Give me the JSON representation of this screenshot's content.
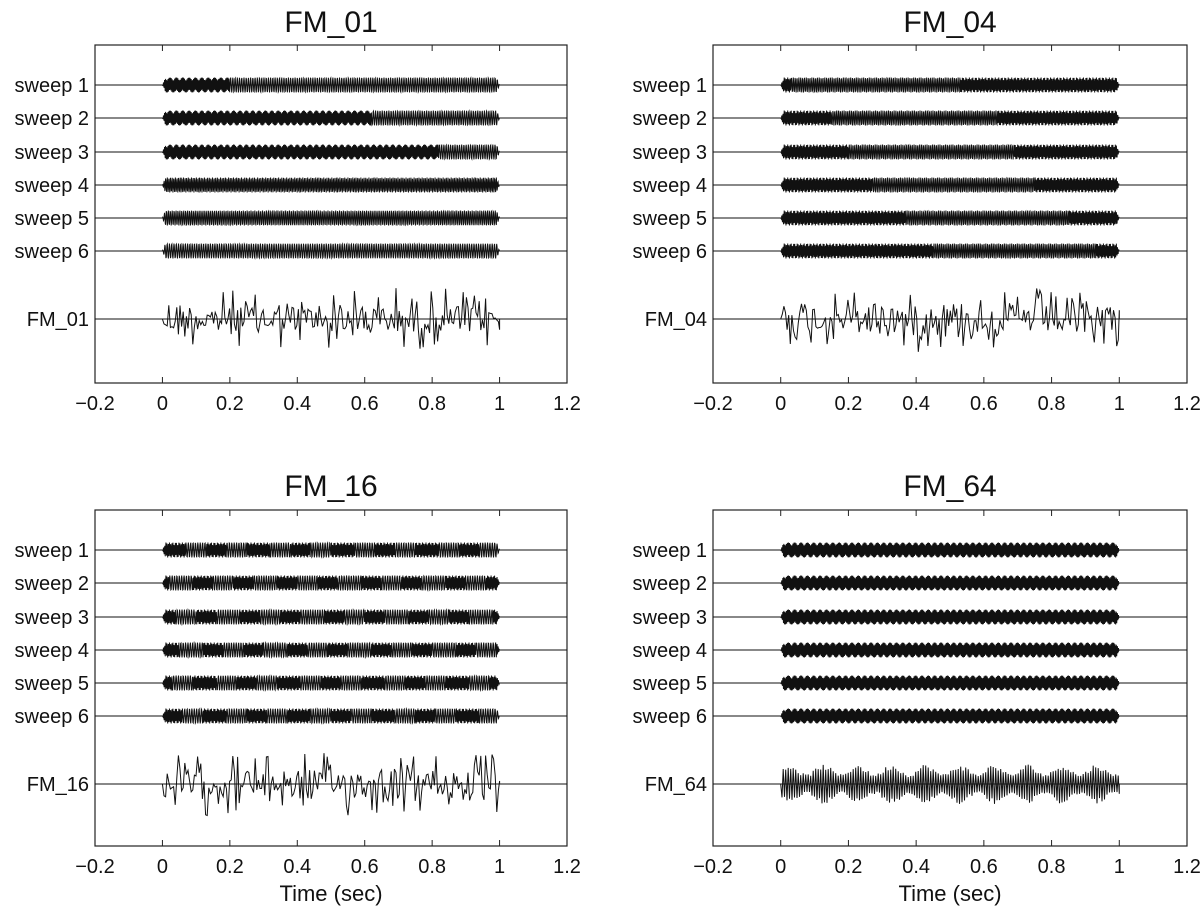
{
  "chart_data": [
    {
      "type": "line",
      "title": "FM_01",
      "xlabel": "",
      "xlim": [
        -0.2,
        1.2
      ],
      "xticks": [
        "−0.2",
        "0",
        "0.2",
        "0.4",
        "0.6",
        "0.8",
        "1",
        "1.2"
      ],
      "series": [
        {
          "name": "sweep 1",
          "start": 0.0,
          "end": 1.0,
          "transitions": [
            0.2
          ]
        },
        {
          "name": "sweep 2",
          "start": 0.0,
          "end": 1.0,
          "transitions": [
            0.62
          ]
        },
        {
          "name": "sweep 3",
          "start": 0.0,
          "end": 1.0,
          "transitions": [
            0.82
          ]
        },
        {
          "name": "sweep 4",
          "start": 0.0,
          "end": 1.0,
          "transitions": []
        },
        {
          "name": "sweep 5",
          "start": 0.0,
          "end": 1.0,
          "transitions": []
        },
        {
          "name": "sweep 6",
          "start": 0.0,
          "end": 1.0,
          "transitions": []
        },
        {
          "name": "FM_01",
          "start": 0.0,
          "end": 1.0,
          "composite": true
        }
      ]
    },
    {
      "type": "line",
      "title": "FM_04",
      "xlabel": "",
      "xlim": [
        -0.2,
        1.2
      ],
      "xticks": [
        "−0.2",
        "0",
        "0.2",
        "0.4",
        "0.6",
        "0.8",
        "1",
        "1.2"
      ],
      "series": [
        {
          "name": "sweep 1",
          "start": 0.0,
          "end": 1.0,
          "transitions": [
            0.03,
            0.53
          ]
        },
        {
          "name": "sweep 2",
          "start": 0.0,
          "end": 1.0,
          "transitions": [
            0.15,
            0.64
          ]
        },
        {
          "name": "sweep 3",
          "start": 0.0,
          "end": 1.0,
          "transitions": [
            0.2,
            0.69
          ]
        },
        {
          "name": "sweep 4",
          "start": 0.0,
          "end": 1.0,
          "transitions": [
            0.27,
            0.75
          ]
        },
        {
          "name": "sweep 5",
          "start": 0.0,
          "end": 1.0,
          "transitions": [
            0.37,
            0.85
          ]
        },
        {
          "name": "sweep 6",
          "start": 0.0,
          "end": 1.0,
          "transitions": [
            0.45,
            0.93
          ]
        },
        {
          "name": "FM_04",
          "start": 0.0,
          "end": 1.0,
          "composite": true
        }
      ]
    },
    {
      "type": "line",
      "title": "FM_16",
      "xlabel": "Time (sec)",
      "xlim": [
        -0.2,
        1.2
      ],
      "xticks": [
        "−0.2",
        "0",
        "0.2",
        "0.4",
        "0.6",
        "0.8",
        "1",
        "1.2"
      ],
      "series": [
        {
          "name": "sweep 1",
          "start": 0.0,
          "end": 1.0,
          "transitions": [
            0.07,
            0.13,
            0.19,
            0.25,
            0.32,
            0.38,
            0.44,
            0.5,
            0.57,
            0.63,
            0.69,
            0.75,
            0.82,
            0.88,
            0.94
          ]
        },
        {
          "name": "sweep 2",
          "start": 0.0,
          "end": 1.0,
          "transitions": [
            0.02,
            0.09,
            0.15,
            0.21,
            0.27,
            0.34,
            0.4,
            0.46,
            0.52,
            0.59,
            0.65,
            0.71,
            0.77,
            0.84,
            0.9,
            0.96
          ]
        },
        {
          "name": "sweep 3",
          "start": 0.0,
          "end": 1.0,
          "transitions": [
            0.04,
            0.1,
            0.16,
            0.23,
            0.29,
            0.35,
            0.41,
            0.48,
            0.54,
            0.6,
            0.66,
            0.73,
            0.79,
            0.85,
            0.91,
            0.98
          ]
        },
        {
          "name": "sweep 4",
          "start": 0.0,
          "end": 1.0,
          "transitions": [
            0.05,
            0.12,
            0.18,
            0.24,
            0.3,
            0.37,
            0.43,
            0.49,
            0.55,
            0.62,
            0.68,
            0.74,
            0.8,
            0.87,
            0.93,
            0.99
          ]
        },
        {
          "name": "sweep 5",
          "start": 0.0,
          "end": 1.0,
          "transitions": [
            0.03,
            0.09,
            0.16,
            0.22,
            0.28,
            0.34,
            0.41,
            0.47,
            0.53,
            0.59,
            0.66,
            0.72,
            0.78,
            0.84,
            0.91,
            0.97
          ]
        },
        {
          "name": "sweep 6",
          "start": 0.0,
          "end": 1.0,
          "transitions": [
            0.06,
            0.12,
            0.19,
            0.25,
            0.31,
            0.37,
            0.44,
            0.5,
            0.56,
            0.62,
            0.69,
            0.75,
            0.81,
            0.87,
            0.94
          ]
        },
        {
          "name": "FM_16",
          "start": 0.0,
          "end": 1.0,
          "composite": true
        }
      ]
    },
    {
      "type": "line",
      "title": "FM_64",
      "xlabel": "Time (sec)",
      "xlim": [
        -0.2,
        1.2
      ],
      "xticks": [
        "−0.2",
        "0",
        "0.2",
        "0.4",
        "0.6",
        "0.8",
        "1",
        "1.2"
      ],
      "series": [
        {
          "name": "sweep 1",
          "start": 0.0,
          "end": 1.0,
          "transitions": []
        },
        {
          "name": "sweep 2",
          "start": 0.0,
          "end": 1.0,
          "transitions": []
        },
        {
          "name": "sweep 3",
          "start": 0.0,
          "end": 1.0,
          "transitions": []
        },
        {
          "name": "sweep 4",
          "start": 0.0,
          "end": 1.0,
          "transitions": []
        },
        {
          "name": "sweep 5",
          "start": 0.0,
          "end": 1.0,
          "transitions": []
        },
        {
          "name": "sweep 6",
          "start": 0.0,
          "end": 1.0,
          "transitions": []
        },
        {
          "name": "FM_64",
          "start": 0.0,
          "end": 1.0,
          "composite": true
        }
      ]
    }
  ],
  "colors": {
    "trace": "#111111",
    "axes": "#222222",
    "background": "#ffffff"
  }
}
